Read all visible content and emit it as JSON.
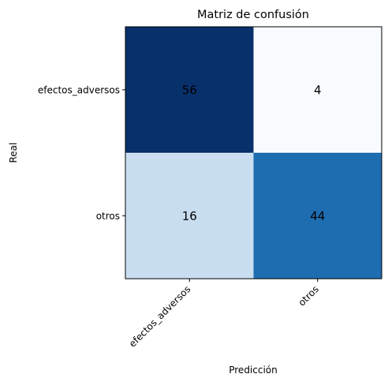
{
  "chart_data": {
    "type": "heatmap",
    "title": "Matriz de confusión",
    "xlabel": "Predicción",
    "ylabel": "Real",
    "x_categories": [
      "efectos_adversos",
      "otros"
    ],
    "y_categories": [
      "efectos_adversos",
      "otros"
    ],
    "values": [
      [
        56,
        4
      ],
      [
        16,
        44
      ]
    ],
    "colormap": "Blues",
    "color_range": [
      4,
      56
    ],
    "cell_colors": [
      [
        "#08306b",
        "#f7fbff"
      ],
      [
        "#c9ddf0",
        "#1f6db1"
      ]
    ],
    "text_colors": [
      [
        "#000000",
        "#000000"
      ],
      [
        "#000000",
        "#000000"
      ]
    ],
    "grid": false,
    "legend": false
  }
}
